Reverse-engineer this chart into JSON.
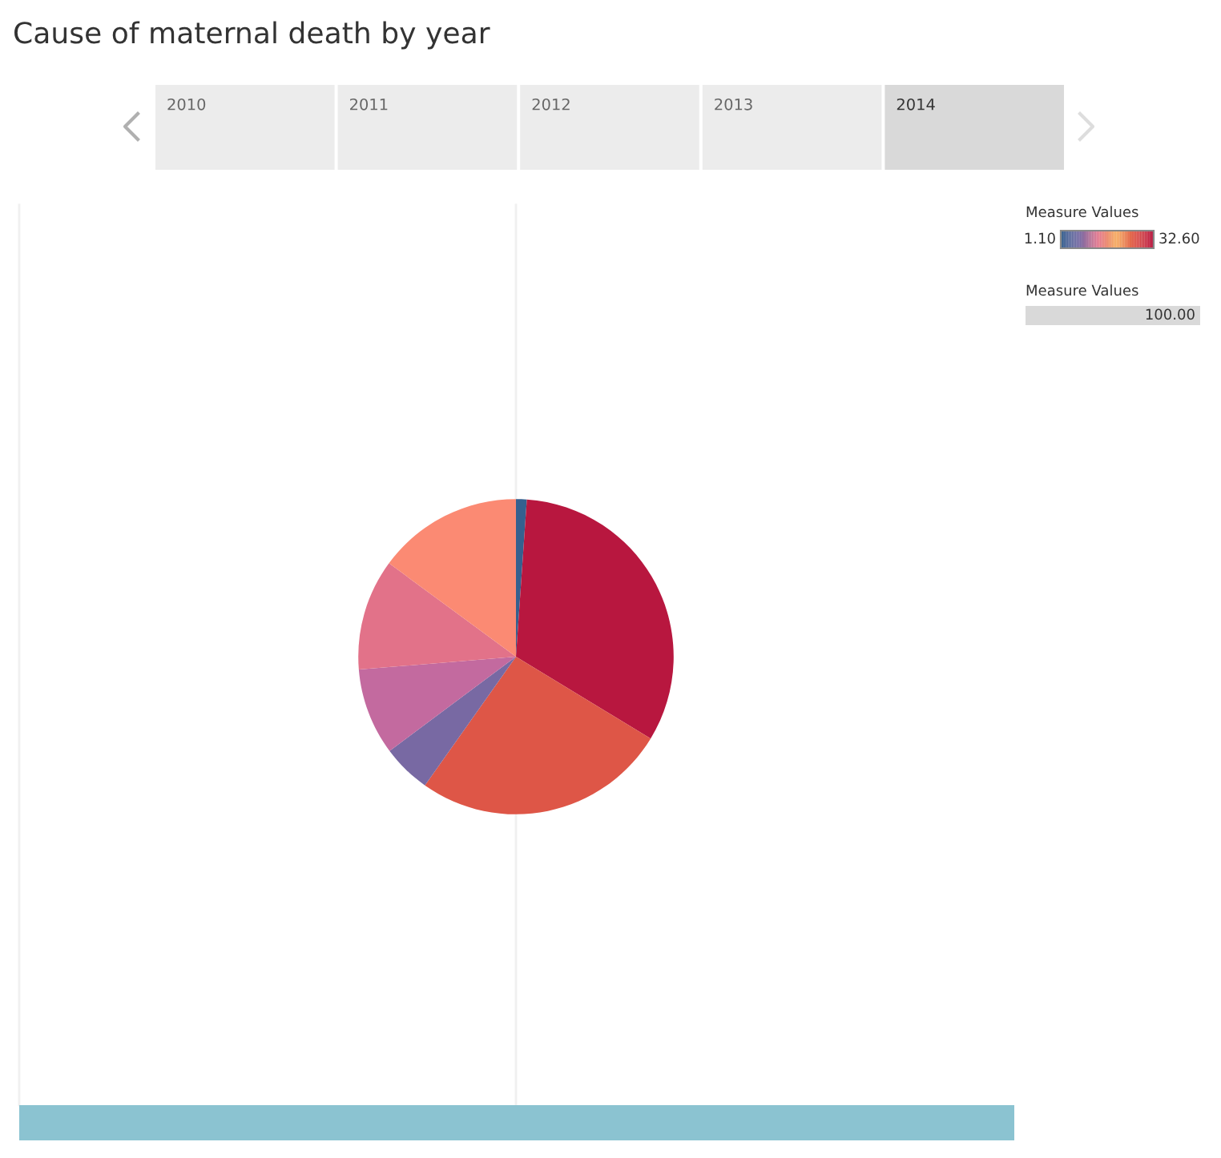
{
  "chart_data": {
    "type": "pie",
    "title": "Cause of maternal death by year",
    "categories": [
      null,
      null,
      null,
      null,
      null,
      null,
      null
    ],
    "values": [
      1.1,
      32.6,
      26.1,
      5.0,
      8.9,
      11.4,
      14.9
    ],
    "colors": [
      "#35608f",
      "#b8173f",
      "#de5647",
      "#7869a3",
      "#c36a9f",
      "#e27289",
      "#fb8a73"
    ],
    "annotations": [
      "2010",
      "2011",
      "2012",
      "2013",
      "2014",
      "Measure Values",
      "100.00",
      "Measure Values",
      "1.10",
      "32.60"
    ]
  }
}
